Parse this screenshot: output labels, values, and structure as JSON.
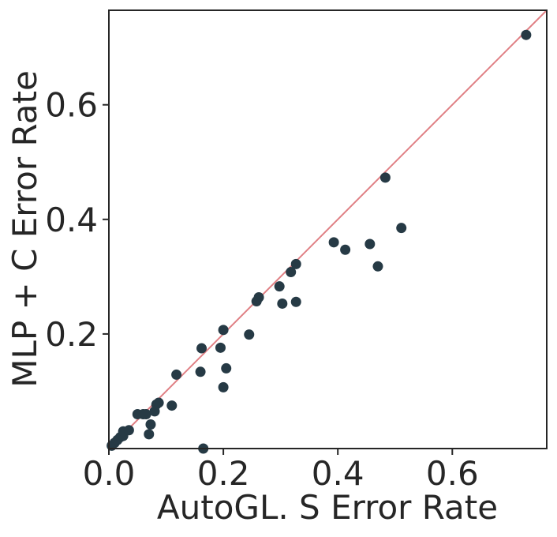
{
  "chart_data": {
    "type": "scatter",
    "title": "",
    "xlabel": "AutoGL. S Error Rate",
    "ylabel": "MLP + C Error Rate",
    "xlim": [
      0.0,
      0.765
    ],
    "ylim": [
      0.0,
      0.765
    ],
    "x_ticks": [
      0.0,
      0.2,
      0.4,
      0.6
    ],
    "x_tick_labels": [
      "0.0",
      "0.2",
      "0.4",
      "0.6"
    ],
    "y_ticks": [
      0.2,
      0.4,
      0.6
    ],
    "y_tick_labels": [
      "0.2",
      "0.4",
      "0.6"
    ],
    "grid": false,
    "reference_line": "y = x",
    "colors": {
      "points": "#263a45",
      "reference_line": "#e07f84",
      "axes": "#262626",
      "text": "#262626"
    },
    "points": [
      {
        "x": 0.005,
        "y": 0.005
      },
      {
        "x": 0.01,
        "y": 0.01
      },
      {
        "x": 0.015,
        "y": 0.015
      },
      {
        "x": 0.02,
        "y": 0.02
      },
      {
        "x": 0.025,
        "y": 0.022
      },
      {
        "x": 0.025,
        "y": 0.03
      },
      {
        "x": 0.035,
        "y": 0.032
      },
      {
        "x": 0.05,
        "y": 0.06
      },
      {
        "x": 0.06,
        "y": 0.06
      },
      {
        "x": 0.065,
        "y": 0.06
      },
      {
        "x": 0.07,
        "y": 0.025
      },
      {
        "x": 0.073,
        "y": 0.042
      },
      {
        "x": 0.08,
        "y": 0.065
      },
      {
        "x": 0.083,
        "y": 0.077
      },
      {
        "x": 0.087,
        "y": 0.08
      },
      {
        "x": 0.11,
        "y": 0.075
      },
      {
        "x": 0.118,
        "y": 0.129
      },
      {
        "x": 0.16,
        "y": 0.134
      },
      {
        "x": 0.162,
        "y": 0.175
      },
      {
        "x": 0.165,
        "y": 0.0
      },
      {
        "x": 0.195,
        "y": 0.176
      },
      {
        "x": 0.2,
        "y": 0.207
      },
      {
        "x": 0.2,
        "y": 0.107
      },
      {
        "x": 0.205,
        "y": 0.14
      },
      {
        "x": 0.245,
        "y": 0.199
      },
      {
        "x": 0.258,
        "y": 0.257
      },
      {
        "x": 0.262,
        "y": 0.264
      },
      {
        "x": 0.298,
        "y": 0.283
      },
      {
        "x": 0.303,
        "y": 0.253
      },
      {
        "x": 0.318,
        "y": 0.308
      },
      {
        "x": 0.327,
        "y": 0.322
      },
      {
        "x": 0.327,
        "y": 0.256
      },
      {
        "x": 0.393,
        "y": 0.36
      },
      {
        "x": 0.413,
        "y": 0.347
      },
      {
        "x": 0.456,
        "y": 0.357
      },
      {
        "x": 0.47,
        "y": 0.318
      },
      {
        "x": 0.483,
        "y": 0.473
      },
      {
        "x": 0.511,
        "y": 0.385
      },
      {
        "x": 0.729,
        "y": 0.722
      }
    ]
  }
}
